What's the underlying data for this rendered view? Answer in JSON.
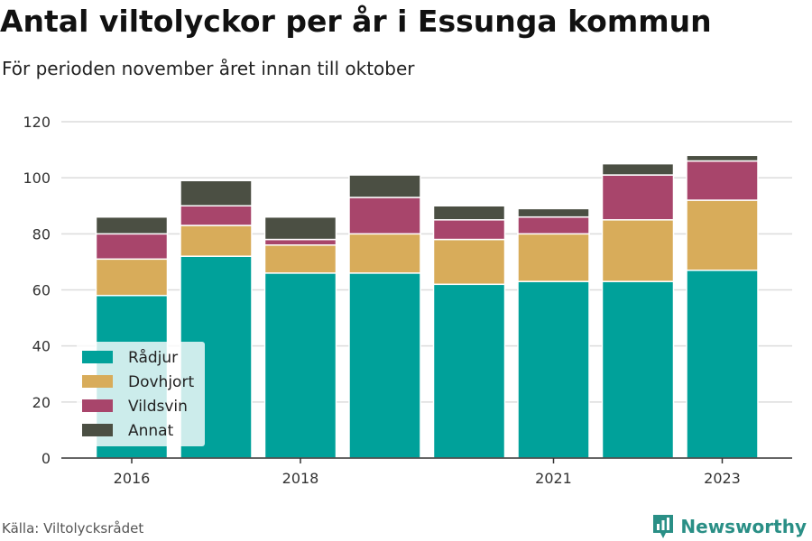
{
  "header": {
    "title": "Antal viltolyckor per år i Essunga kommun",
    "subtitle": "För perioden november året innan till oktober"
  },
  "footer": {
    "source": "Källa: Viltolycksrådet",
    "brand": "Newsworthy"
  },
  "chart_data": {
    "type": "bar",
    "stacked": true,
    "categories": [
      "2016",
      "2017",
      "2018",
      "2019",
      "2020",
      "2021",
      "2022",
      "2023"
    ],
    "tick_labels": [
      "2016",
      "",
      "2018",
      "",
      "",
      "2021",
      "",
      "2023"
    ],
    "ylim": [
      0,
      120
    ],
    "yticks": [
      0,
      20,
      40,
      60,
      80,
      100,
      120
    ],
    "grid": true,
    "legend_position": "bottom-left",
    "series": [
      {
        "name": "Rådjur",
        "color": "#00a19a",
        "values": [
          58,
          72,
          66,
          66,
          62,
          63,
          63,
          67
        ]
      },
      {
        "name": "Dovhjort",
        "color": "#d8ac5a",
        "values": [
          13,
          11,
          10,
          14,
          16,
          17,
          22,
          25
        ]
      },
      {
        "name": "Vildsvin",
        "color": "#a8456b",
        "values": [
          9,
          7,
          2,
          13,
          7,
          6,
          16,
          14
        ]
      },
      {
        "name": "Annat",
        "color": "#4b4f43",
        "values": [
          6,
          9,
          8,
          8,
          5,
          3,
          4,
          2
        ]
      }
    ]
  }
}
